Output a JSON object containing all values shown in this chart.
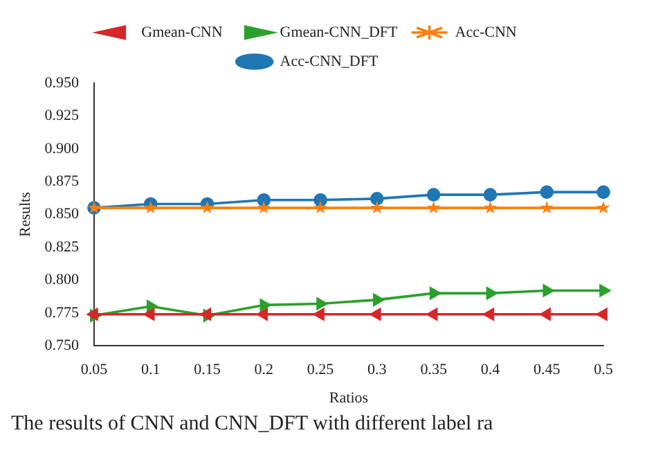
{
  "chart_data": {
    "type": "line",
    "xlabel": "Ratios",
    "ylabel": "Results",
    "categories": [
      "0.05",
      "0.1",
      "0.15",
      "0.2",
      "0.25",
      "0.3",
      "0.35",
      "0.4",
      "0.45",
      "0.5"
    ],
    "series": [
      {
        "name": "Acc-CNN_DFT",
        "color": "#1f77b4",
        "marker": "circle",
        "values": [
          0.855,
          0.858,
          0.858,
          0.861,
          0.861,
          0.862,
          0.865,
          0.865,
          0.867,
          0.867
        ]
      },
      {
        "name": "Acc-CNN",
        "color": "#ff7f0e",
        "marker": "star",
        "values": [
          0.855,
          0.855,
          0.855,
          0.855,
          0.855,
          0.855,
          0.855,
          0.855,
          0.855,
          0.855
        ]
      },
      {
        "name": "Gmean-CNN_DFT",
        "color": "#2ca02c",
        "marker": "triangle-right",
        "values": [
          0.773,
          0.78,
          0.773,
          0.781,
          0.782,
          0.785,
          0.79,
          0.79,
          0.792,
          0.792
        ]
      },
      {
        "name": "Gmean-CNN",
        "color": "#d62728",
        "marker": "triangle-left",
        "values": [
          0.774,
          0.774,
          0.774,
          0.774,
          0.774,
          0.774,
          0.774,
          0.774,
          0.774,
          0.774
        ]
      }
    ],
    "ylim": [
      0.75,
      0.95
    ],
    "yticks": [
      {
        "value": 0.75,
        "label": "0.750"
      },
      0.775,
      {
        "value": 0.8,
        "label": "0.800"
      },
      0.825,
      {
        "value": 0.85,
        "label": "0.850"
      },
      0.875,
      {
        "value": 0.9,
        "label": "0.900"
      },
      0.925,
      {
        "value": 0.95,
        "label": "0.950"
      }
    ],
    "grid": false,
    "legend": "top",
    "line_style": "solid",
    "annotations": [
      "The results of CNN and CNN_DFT with different label ra"
    ]
  }
}
